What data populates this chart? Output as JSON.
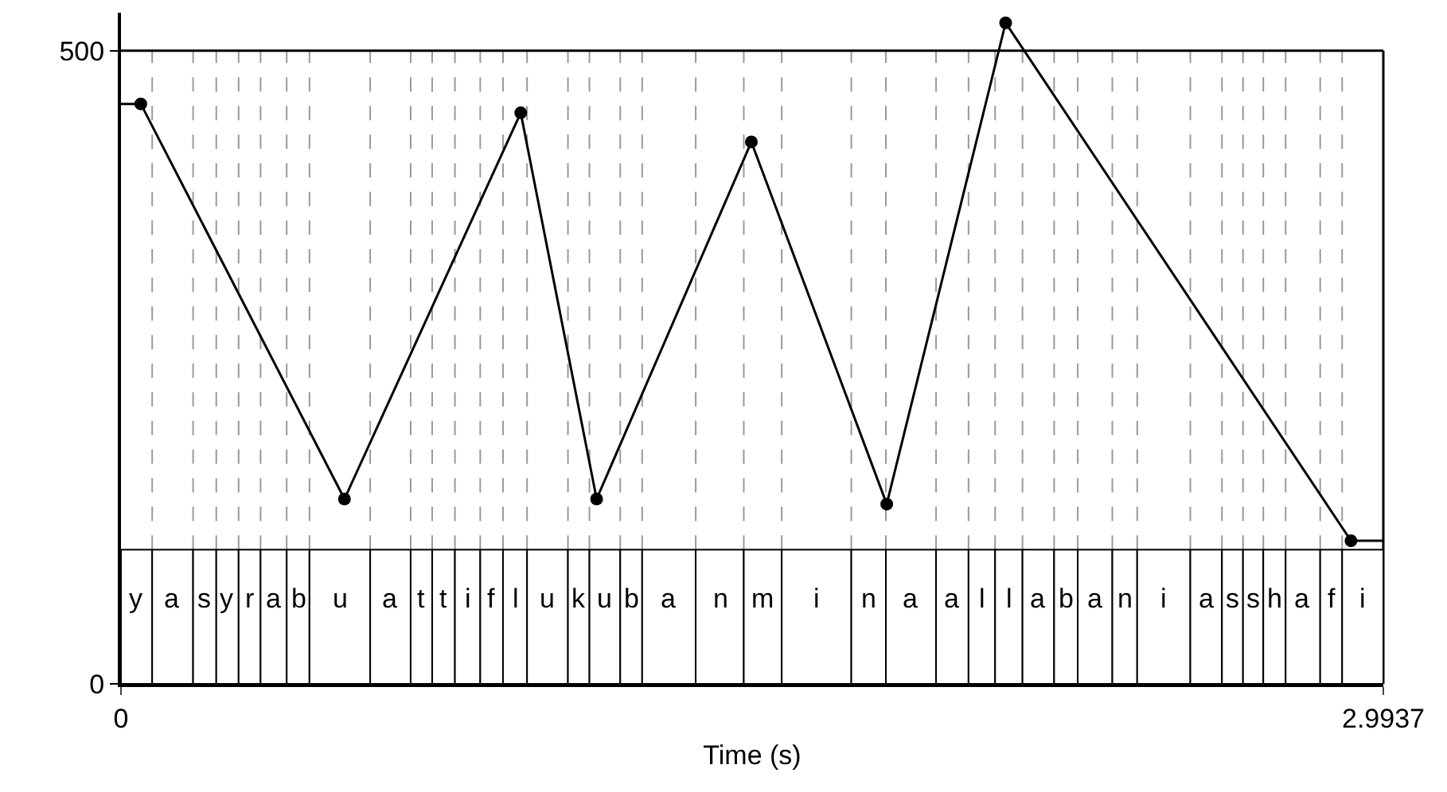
{
  "chart_data": {
    "type": "line",
    "xlabel": "Time (s)",
    "xlim": [
      0,
      2.9937
    ],
    "xticks": [
      0,
      2.9937
    ],
    "ylim": [
      0,
      530
    ],
    "yticks": [
      0,
      500
    ],
    "ref_lines": [
      {
        "axis": "y",
        "value": 500,
        "color": "#000000"
      },
      {
        "axis": "x",
        "value": 0.074,
        "color": "#999999",
        "line_style": "dashed"
      },
      {
        "axis": "x",
        "value": 0.171,
        "color": "#999999",
        "line_style": "dashed"
      },
      {
        "axis": "x",
        "value": 0.226,
        "color": "#999999",
        "line_style": "dashed"
      },
      {
        "axis": "x",
        "value": 0.279,
        "color": "#999999",
        "line_style": "dashed"
      },
      {
        "axis": "x",
        "value": 0.331,
        "color": "#999999",
        "line_style": "dashed"
      },
      {
        "axis": "x",
        "value": 0.393,
        "color": "#999999",
        "line_style": "dashed"
      },
      {
        "axis": "x",
        "value": 0.447,
        "color": "#999999",
        "line_style": "dashed"
      },
      {
        "axis": "x",
        "value": 0.591,
        "color": "#999999",
        "line_style": "dashed"
      },
      {
        "axis": "x",
        "value": 0.687,
        "color": "#999999",
        "line_style": "dashed"
      },
      {
        "axis": "x",
        "value": 0.738,
        "color": "#999999",
        "line_style": "dashed"
      },
      {
        "axis": "x",
        "value": 0.792,
        "color": "#999999",
        "line_style": "dashed"
      },
      {
        "axis": "x",
        "value": 0.852,
        "color": "#999999",
        "line_style": "dashed"
      },
      {
        "axis": "x",
        "value": 0.906,
        "color": "#999999",
        "line_style": "dashed"
      },
      {
        "axis": "x",
        "value": 0.963,
        "color": "#999999",
        "line_style": "dashed"
      },
      {
        "axis": "x",
        "value": 1.06,
        "color": "#999999",
        "line_style": "dashed"
      },
      {
        "axis": "x",
        "value": 1.111,
        "color": "#999999",
        "line_style": "dashed"
      },
      {
        "axis": "x",
        "value": 1.184,
        "color": "#999999",
        "line_style": "dashed"
      },
      {
        "axis": "x",
        "value": 1.236,
        "color": "#999999",
        "line_style": "dashed"
      },
      {
        "axis": "x",
        "value": 1.363,
        "color": "#999999",
        "line_style": "dashed"
      },
      {
        "axis": "x",
        "value": 1.477,
        "color": "#999999",
        "line_style": "dashed"
      },
      {
        "axis": "x",
        "value": 1.567,
        "color": "#999999",
        "line_style": "dashed"
      },
      {
        "axis": "x",
        "value": 1.732,
        "color": "#999999",
        "line_style": "dashed"
      },
      {
        "axis": "x",
        "value": 1.814,
        "color": "#999999",
        "line_style": "dashed"
      },
      {
        "axis": "x",
        "value": 1.933,
        "color": "#999999",
        "line_style": "dashed"
      },
      {
        "axis": "x",
        "value": 2.01,
        "color": "#999999",
        "line_style": "dashed"
      },
      {
        "axis": "x",
        "value": 2.073,
        "color": "#999999",
        "line_style": "dashed"
      },
      {
        "axis": "x",
        "value": 2.138,
        "color": "#999999",
        "line_style": "dashed"
      },
      {
        "axis": "x",
        "value": 2.213,
        "color": "#999999",
        "line_style": "dashed"
      },
      {
        "axis": "x",
        "value": 2.269,
        "color": "#999999",
        "line_style": "dashed"
      },
      {
        "axis": "x",
        "value": 2.351,
        "color": "#999999",
        "line_style": "dashed"
      },
      {
        "axis": "x",
        "value": 2.41,
        "color": "#999999",
        "line_style": "dashed"
      },
      {
        "axis": "x",
        "value": 2.536,
        "color": "#999999",
        "line_style": "dashed"
      },
      {
        "axis": "x",
        "value": 2.611,
        "color": "#999999",
        "line_style": "dashed"
      },
      {
        "axis": "x",
        "value": 2.661,
        "color": "#999999",
        "line_style": "dashed"
      },
      {
        "axis": "x",
        "value": 2.709,
        "color": "#999999",
        "line_style": "dashed"
      },
      {
        "axis": "x",
        "value": 2.762,
        "color": "#999999",
        "line_style": "dashed"
      },
      {
        "axis": "x",
        "value": 2.844,
        "color": "#999999",
        "line_style": "dashed"
      },
      {
        "axis": "x",
        "value": 2.896,
        "color": "#999999",
        "line_style": "dashed"
      }
    ],
    "series": [
      {
        "color": "#000000",
        "marker": "none",
        "line_style": "solid",
        "x": [
          0,
          0.047,
          0.53,
          0.948,
          1.128,
          1.495,
          1.816,
          2.098,
          2.917,
          2.9937
        ],
        "values": [
          458,
          458,
          146,
          451,
          146,
          428,
          142,
          522,
          113,
          113
        ]
      },
      {
        "type": "scatter",
        "color": "#000000",
        "marker": "circle",
        "x": [
          0.047,
          0.53,
          0.948,
          1.128,
          1.495,
          1.816,
          2.098,
          2.917
        ],
        "values": [
          458,
          146,
          451,
          146,
          428,
          142,
          522,
          113
        ]
      }
    ],
    "bands": [
      {
        "axis": "x",
        "from": 0,
        "to": 0.074,
        "label": "y"
      },
      {
        "axis": "x",
        "from": 0.074,
        "to": 0.171,
        "label": "a"
      },
      {
        "axis": "x",
        "from": 0.171,
        "to": 0.226,
        "label": "s"
      },
      {
        "axis": "x",
        "from": 0.226,
        "to": 0.279,
        "label": "y"
      },
      {
        "axis": "x",
        "from": 0.279,
        "to": 0.331,
        "label": "r"
      },
      {
        "axis": "x",
        "from": 0.331,
        "to": 0.393,
        "label": "a"
      },
      {
        "axis": "x",
        "from": 0.393,
        "to": 0.447,
        "label": "b"
      },
      {
        "axis": "x",
        "from": 0.447,
        "to": 0.591,
        "label": "u"
      },
      {
        "axis": "x",
        "from": 0.591,
        "to": 0.687,
        "label": "a"
      },
      {
        "axis": "x",
        "from": 0.687,
        "to": 0.738,
        "label": "t"
      },
      {
        "axis": "x",
        "from": 0.738,
        "to": 0.792,
        "label": "t"
      },
      {
        "axis": "x",
        "from": 0.792,
        "to": 0.852,
        "label": "i"
      },
      {
        "axis": "x",
        "from": 0.852,
        "to": 0.906,
        "label": "f"
      },
      {
        "axis": "x",
        "from": 0.906,
        "to": 0.963,
        "label": "l"
      },
      {
        "axis": "x",
        "from": 0.963,
        "to": 1.06,
        "label": "u"
      },
      {
        "axis": "x",
        "from": 1.06,
        "to": 1.111,
        "label": "k"
      },
      {
        "axis": "x",
        "from": 1.111,
        "to": 1.184,
        "label": "u"
      },
      {
        "axis": "x",
        "from": 1.184,
        "to": 1.236,
        "label": "b"
      },
      {
        "axis": "x",
        "from": 1.236,
        "to": 1.363,
        "label": "a"
      },
      {
        "axis": "x",
        "from": 1.363,
        "to": 1.477,
        "label": "n"
      },
      {
        "axis": "x",
        "from": 1.477,
        "to": 1.567,
        "label": "m"
      },
      {
        "axis": "x",
        "from": 1.567,
        "to": 1.732,
        "label": "i"
      },
      {
        "axis": "x",
        "from": 1.732,
        "to": 1.814,
        "label": "n"
      },
      {
        "axis": "x",
        "from": 1.814,
        "to": 1.933,
        "label": "a"
      },
      {
        "axis": "x",
        "from": 1.933,
        "to": 2.01,
        "label": "a"
      },
      {
        "axis": "x",
        "from": 2.01,
        "to": 2.073,
        "label": "l"
      },
      {
        "axis": "x",
        "from": 2.073,
        "to": 2.138,
        "label": "l"
      },
      {
        "axis": "x",
        "from": 2.138,
        "to": 2.213,
        "label": "a"
      },
      {
        "axis": "x",
        "from": 2.213,
        "to": 2.269,
        "label": "b"
      },
      {
        "axis": "x",
        "from": 2.269,
        "to": 2.351,
        "label": "a"
      },
      {
        "axis": "x",
        "from": 2.351,
        "to": 2.41,
        "label": "n"
      },
      {
        "axis": "x",
        "from": 2.41,
        "to": 2.536,
        "label": "i"
      },
      {
        "axis": "x",
        "from": 2.536,
        "to": 2.611,
        "label": "a"
      },
      {
        "axis": "x",
        "from": 2.611,
        "to": 2.661,
        "label": "s"
      },
      {
        "axis": "x",
        "from": 2.661,
        "to": 2.709,
        "label": "s"
      },
      {
        "axis": "x",
        "from": 2.709,
        "to": 2.762,
        "label": "h"
      },
      {
        "axis": "x",
        "from": 2.762,
        "to": 2.844,
        "label": "a"
      },
      {
        "axis": "x",
        "from": 2.844,
        "to": 2.896,
        "label": "f"
      },
      {
        "axis": "x",
        "from": 2.896,
        "to": 2.9937,
        "label": "i"
      }
    ]
  }
}
